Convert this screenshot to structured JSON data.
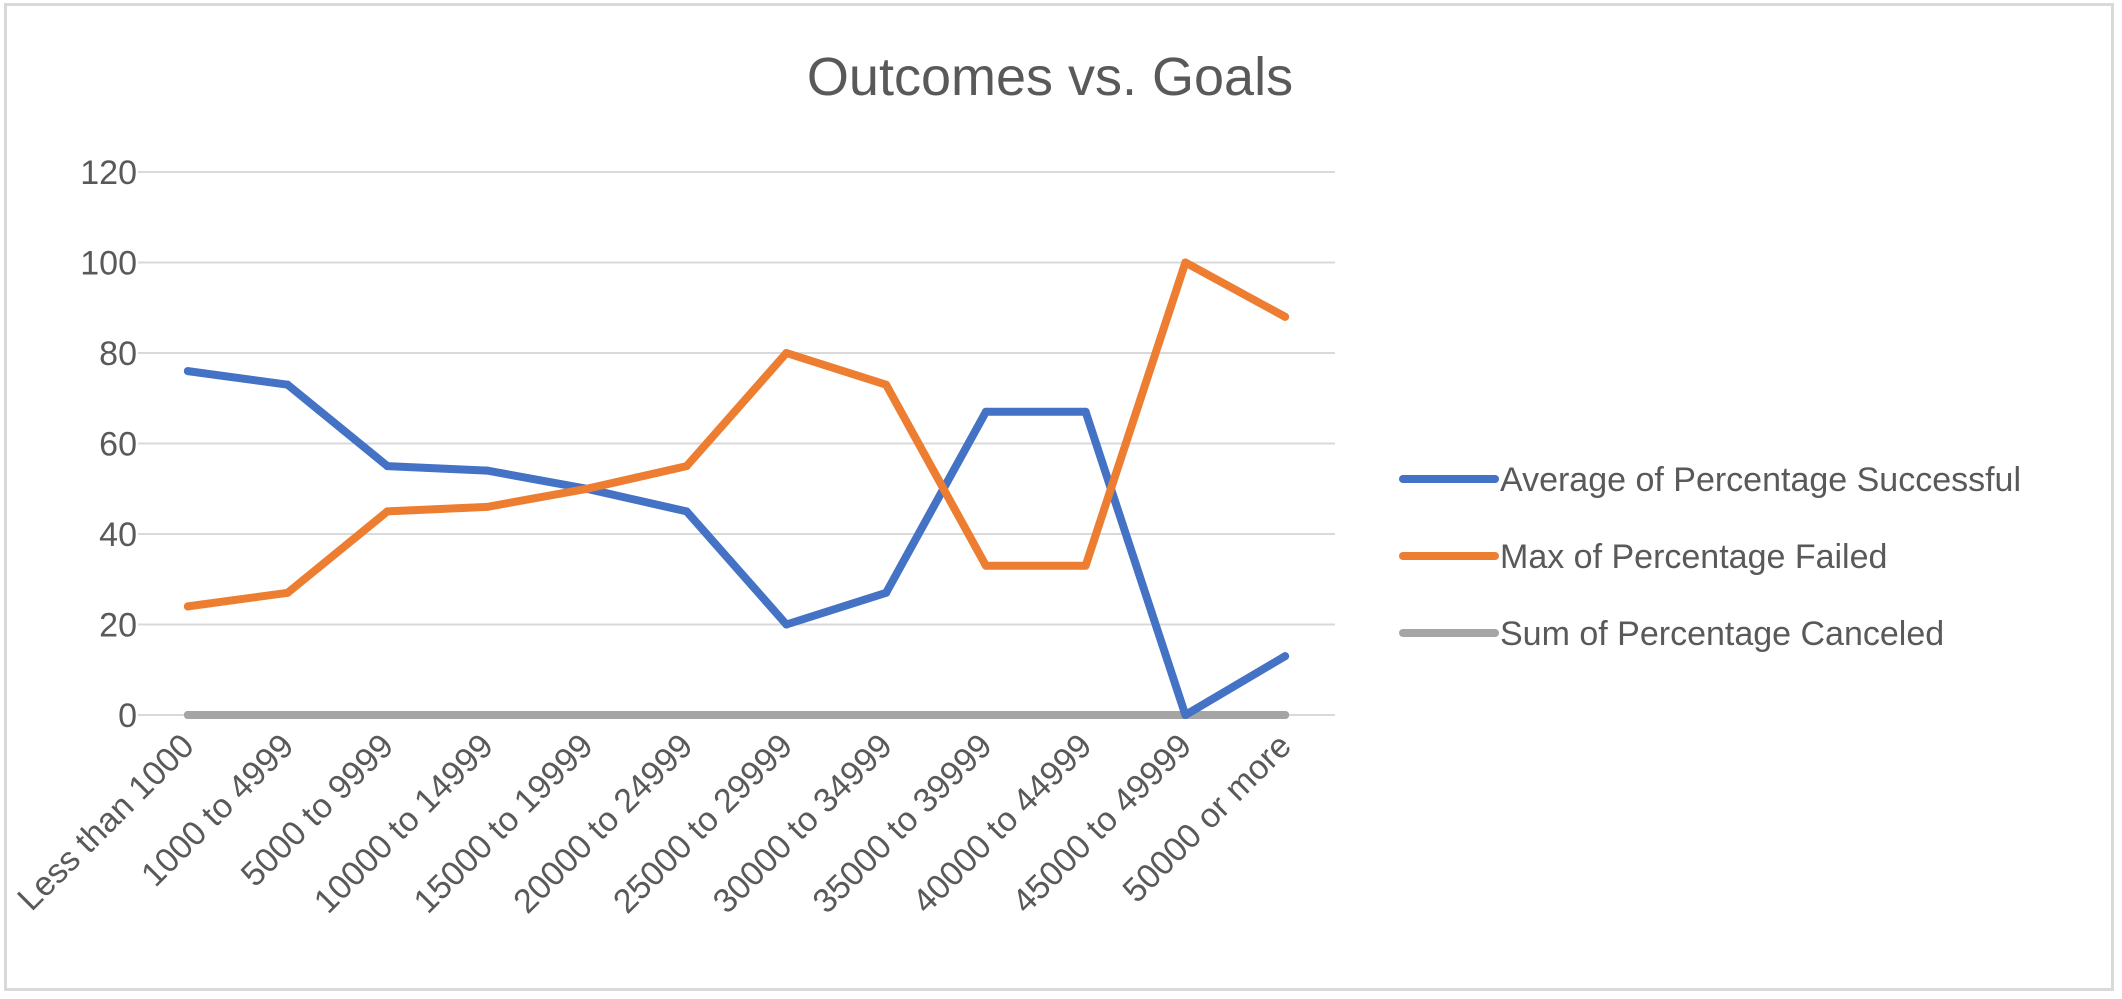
{
  "chart_data": {
    "type": "line",
    "title": "Outcomes vs. Goals",
    "xlabel": "",
    "ylabel": "",
    "ylim": [
      0,
      120
    ],
    "yticks": [
      0,
      20,
      40,
      60,
      80,
      100,
      120
    ],
    "grid": true,
    "legend_position": "right",
    "categories": [
      "Less than 1000",
      "1000 to 4999",
      "5000 to 9999",
      "10000 to 14999",
      "15000 to 19999",
      "20000 to 24999",
      "25000 to 29999",
      "30000 to 34999",
      "35000 to 39999",
      "40000 to 44999",
      "45000 to 49999",
      "50000 or more"
    ],
    "series": [
      {
        "name": "Average of Percentage Successful",
        "color": "#4472c4",
        "values": [
          76,
          73,
          55,
          54,
          50,
          45,
          20,
          27,
          67,
          67,
          0,
          13
        ]
      },
      {
        "name": "Max of Percentage Failed",
        "color": "#ed7d31",
        "values": [
          24,
          27,
          45,
          46,
          50,
          55,
          80,
          73,
          33,
          33,
          100,
          88
        ]
      },
      {
        "name": "Sum of Percentage Canceled",
        "color": "#a5a5a5",
        "values": [
          0,
          0,
          0,
          0,
          0,
          0,
          0,
          0,
          0,
          0,
          0,
          0
        ]
      }
    ]
  }
}
